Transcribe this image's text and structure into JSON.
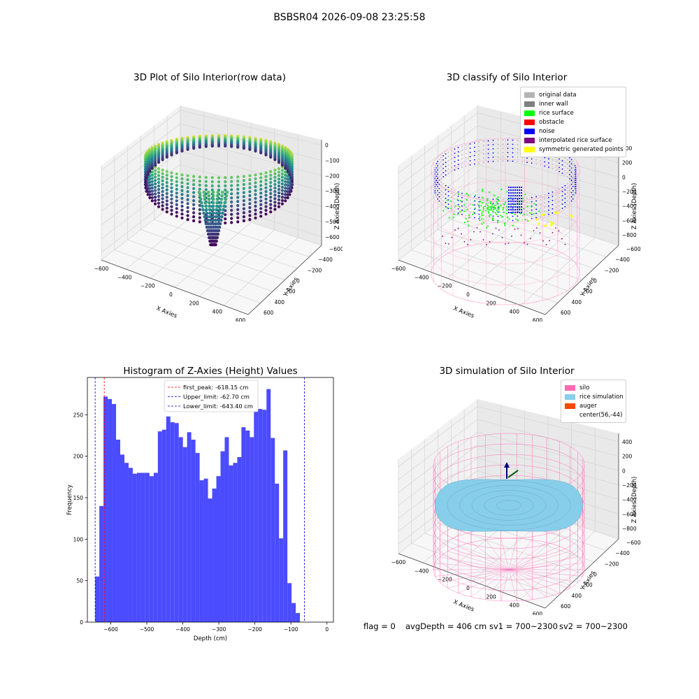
{
  "suptitle": "BSBSR04 2026-09-08 23:25:58",
  "footer": {
    "flag": "flag = 0",
    "avg_depth": "avgDepth = 406 cm",
    "sv1": "sv1 = 700~2300",
    "sv2": "sv2 = 700~2300"
  },
  "chart_data": [
    {
      "type": "scatter",
      "title": "3D Plot of Silo Interior(row data)",
      "xlabel": "X Axies",
      "ylabel": "Y Axies",
      "zlabel": "Z Axies (Depth)",
      "xticks": [
        "−600",
        "−400",
        "−200",
        "0",
        "200",
        "400",
        "600"
      ],
      "yticks": [
        "−600",
        "−400",
        "−200",
        "0",
        "200",
        "400",
        "600"
      ],
      "zticks": [
        "0",
        "−100",
        "−200",
        "−300",
        "−400",
        "−500",
        "−600"
      ],
      "colormap": "viridis",
      "grid": true
    },
    {
      "type": "scatter",
      "title": "3D classify of Silo Interior",
      "xlabel": "X Axies",
      "ylabel": "Y Axies",
      "zlabel": "Z Axies (Depth)",
      "xticks": [
        "−600",
        "−400",
        "−200",
        "0",
        "200",
        "400",
        "600"
      ],
      "yticks": [
        "−600",
        "−400",
        "−200",
        "0",
        "200",
        "400",
        "600"
      ],
      "zticks": [
        "400",
        "200",
        "0",
        "−200",
        "−400",
        "−600",
        "−800"
      ],
      "legend": [
        {
          "label": "original data",
          "color": "#b4b4b4"
        },
        {
          "label": "inner wall",
          "color": "#808080"
        },
        {
          "label": "rice surface",
          "color": "#00ff00"
        },
        {
          "label": "obstacle",
          "color": "#ff0000"
        },
        {
          "label": "noise",
          "color": "#0000ff"
        },
        {
          "label": "interpolated rice surface",
          "color": "#800080"
        },
        {
          "label": "symmetric generated points",
          "color": "#ffff00"
        }
      ],
      "legend_loc": "upper right",
      "grid": true
    },
    {
      "type": "bar",
      "title": "Histogram of Z-Axies (Height) Values",
      "xlabel": "Depth (cm)",
      "ylabel": "Frequency",
      "xlim": [
        -665,
        18
      ],
      "ylim": [
        0,
        295
      ],
      "xticks": [
        -600,
        -500,
        -400,
        -300,
        -200,
        -100,
        0
      ],
      "xtick_labels": [
        "−600",
        "−500",
        "−400",
        "−300",
        "−200",
        "−100",
        "0"
      ],
      "yticks": [
        0,
        50,
        100,
        150,
        200,
        250
      ],
      "bin_start": -643.4,
      "bin_width": 11.6,
      "values": [
        55,
        140,
        272,
        269,
        263,
        220,
        202,
        192,
        186,
        179,
        180,
        180,
        180,
        176,
        180,
        230,
        232,
        248,
        241,
        240,
        223,
        211,
        229,
        220,
        204,
        171,
        173,
        149,
        161,
        176,
        206,
        223,
        189,
        192,
        199,
        235,
        231,
        223,
        270,
        257,
        256,
        281,
        222,
        167,
        101,
        207,
        47,
        23,
        11
      ],
      "bar_color": "#4b4bff",
      "vlines": [
        {
          "x": -618.15,
          "label": "first_peak: -618.15 cm",
          "color": "#ff0000"
        },
        {
          "x": -62.7,
          "label": "Upper_limit: -62.70 cm",
          "color": "#0000cc"
        },
        {
          "x": -643.4,
          "label": "Lower_limit: -643.40 cm",
          "color": "#0000cc"
        }
      ],
      "legend_loc": "upper center"
    },
    {
      "type": "area",
      "title": "3D simulation of Silo Interior",
      "xlabel": "X Axies",
      "ylabel": "Y Axies",
      "zlabel": "Z Axies (Depth)",
      "xticks": [
        "−600",
        "−400",
        "−200",
        "0",
        "200",
        "400",
        "600"
      ],
      "yticks": [
        "−600",
        "−400",
        "−200",
        "0",
        "200",
        "400",
        "600"
      ],
      "zticks": [
        "400",
        "200",
        "0",
        "−200",
        "−400",
        "−600",
        "−800"
      ],
      "legend": [
        {
          "label": "silo",
          "color": "#ff69b4"
        },
        {
          "label": "rice simulation",
          "color": "#87ceeb"
        },
        {
          "label": "auger",
          "color": "#ff4500"
        },
        {
          "label": "center(56,-44)",
          "color": "#ffffff"
        }
      ],
      "legend_loc": "upper right",
      "grid": true
    }
  ]
}
